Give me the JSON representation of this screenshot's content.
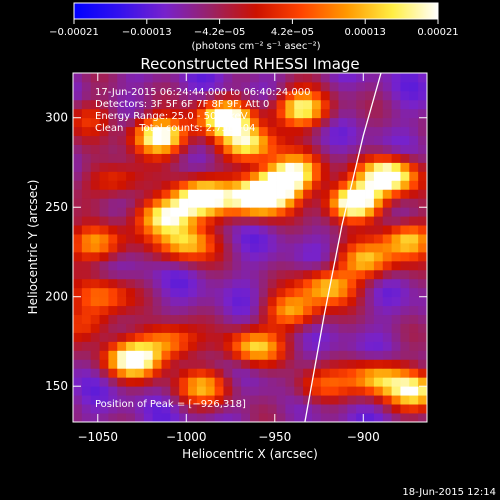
{
  "chart_data": {
    "type": "heatmap",
    "title": "Reconstructed RHESSI Image",
    "xlabel": "Heliocentric X (arcsec)",
    "ylabel": "Heliocentric Y (arcsec)",
    "xlim": [
      -1064,
      -864
    ],
    "ylim": [
      130,
      325
    ],
    "x_ticks": [
      {
        "value": -1050,
        "label": "−1050"
      },
      {
        "value": -1000,
        "label": "−1000"
      },
      {
        "value": -950,
        "label": "−950"
      },
      {
        "value": -900,
        "label": "−900"
      }
    ],
    "y_ticks": [
      {
        "value": 150,
        "label": "150"
      },
      {
        "value": 200,
        "label": "200"
      },
      {
        "value": 250,
        "label": "250"
      },
      {
        "value": 300,
        "label": "300"
      }
    ],
    "colorbar": {
      "colormap": "blue-purple-red-yellow-white (RHESSI ct)",
      "range": [
        -0.00021,
        0.00021
      ],
      "tick_labels": [
        "−0.00021",
        "−0.00013",
        "−4.2e−05",
        "4.2e−05",
        "0.00013",
        "0.00021"
      ],
      "unit_label": "(photons cm⁻² s⁻¹ asec⁻²)",
      "stops": [
        "#0000ff",
        "#3311ee",
        "#7722cc",
        "#992266",
        "#cc1100",
        "#ff4400",
        "#ff9900",
        "#ffee44",
        "#ffffff"
      ]
    },
    "annotations": [
      "17-Jun-2015 06:24:44.000 to 06:40:24.000",
      "Detectors: 3F 5F 6F 7F 8F 9F, Att 0",
      "Energy Range: 25.0 - 50.0 keV",
      "Clean     Total counts: 2.75E+04"
    ],
    "peak_label": "Position of Peak = [−926,318]",
    "peak": {
      "x": -926,
      "y": 318
    },
    "limb_curve": [
      {
        "x": -933,
        "y": 130
      },
      {
        "x": -922,
        "y": 190
      },
      {
        "x": -912,
        "y": 240
      },
      {
        "x": -900,
        "y": 290
      },
      {
        "x": -890,
        "y": 325
      }
    ],
    "emission_blobs": [
      {
        "x": -1015,
        "y": 290,
        "v": 0.9
      },
      {
        "x": -978,
        "y": 300,
        "v": 0.85
      },
      {
        "x": -965,
        "y": 285,
        "v": 0.7
      },
      {
        "x": -935,
        "y": 305,
        "v": 0.75
      },
      {
        "x": -992,
        "y": 255,
        "v": 0.95
      },
      {
        "x": -1010,
        "y": 245,
        "v": 0.75
      },
      {
        "x": -960,
        "y": 255,
        "v": 0.85
      },
      {
        "x": -950,
        "y": 262,
        "v": 0.7
      },
      {
        "x": -938,
        "y": 270,
        "v": 0.65
      },
      {
        "x": -905,
        "y": 253,
        "v": 1.0
      },
      {
        "x": -885,
        "y": 268,
        "v": 0.95
      },
      {
        "x": -1050,
        "y": 230,
        "v": 0.6
      },
      {
        "x": -1048,
        "y": 200,
        "v": 0.45
      },
      {
        "x": -1055,
        "y": 185,
        "v": 0.35
      },
      {
        "x": -1030,
        "y": 165,
        "v": 0.85
      },
      {
        "x": -1010,
        "y": 175,
        "v": 0.55
      },
      {
        "x": -990,
        "y": 150,
        "v": 0.5
      },
      {
        "x": -962,
        "y": 172,
        "v": 0.6
      },
      {
        "x": -940,
        "y": 192,
        "v": 0.55
      },
      {
        "x": -920,
        "y": 206,
        "v": 0.6
      },
      {
        "x": -898,
        "y": 220,
        "v": 0.55
      },
      {
        "x": -875,
        "y": 232,
        "v": 0.65
      },
      {
        "x": -1000,
        "y": 230,
        "v": 0.6
      },
      {
        "x": -925,
        "y": 150,
        "v": 0.4
      },
      {
        "x": -892,
        "y": 155,
        "v": 0.6
      },
      {
        "x": -870,
        "y": 148,
        "v": 0.7
      },
      {
        "x": -1040,
        "y": 265,
        "v": 0.4
      },
      {
        "x": -1055,
        "y": 300,
        "v": 0.3
      }
    ]
  },
  "footer": {
    "timestamp": "18-Jun-2015 12:14"
  }
}
